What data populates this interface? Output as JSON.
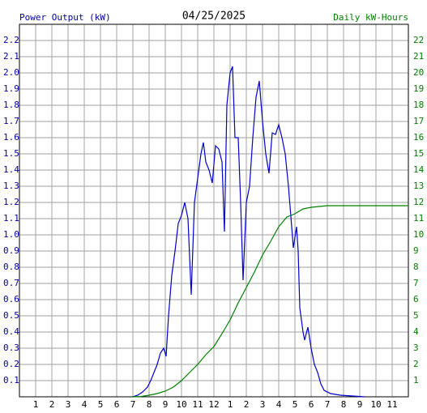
{
  "chart_data": {
    "type": "line",
    "title": "04/25/2025",
    "ylabel": "Power Output (kW)",
    "y2label": "Daily kW-Hours",
    "ylabel_color": "#0000aa",
    "y2label_color": "#008000",
    "xlim": [
      0,
      24
    ],
    "xticks": [
      {
        "value": 1,
        "label": "1"
      },
      {
        "value": 2,
        "label": "2"
      },
      {
        "value": 3,
        "label": "3"
      },
      {
        "value": 4,
        "label": "4"
      },
      {
        "value": 5,
        "label": "5"
      },
      {
        "value": 6,
        "label": "6"
      },
      {
        "value": 7,
        "label": "7"
      },
      {
        "value": 8,
        "label": "8"
      },
      {
        "value": 9,
        "label": "9"
      },
      {
        "value": 10,
        "label": "10"
      },
      {
        "value": 11,
        "label": "11"
      },
      {
        "value": 12,
        "label": "12"
      },
      {
        "value": 13,
        "label": "1"
      },
      {
        "value": 14,
        "label": "2"
      },
      {
        "value": 15,
        "label": "3"
      },
      {
        "value": 16,
        "label": "4"
      },
      {
        "value": 17,
        "label": "5"
      },
      {
        "value": 18,
        "label": "6"
      },
      {
        "value": 19,
        "label": "7"
      },
      {
        "value": 20,
        "label": "8"
      },
      {
        "value": 21,
        "label": "9"
      },
      {
        "value": 22,
        "label": "10"
      },
      {
        "value": 23,
        "label": "11"
      }
    ],
    "ylim": [
      0,
      2.3
    ],
    "yticks": [
      0.1,
      0.2,
      0.3,
      0.4,
      0.5,
      0.6,
      0.7,
      0.8,
      0.9,
      {
        "value": 1,
        "label": "1.0"
      },
      1.1,
      1.2,
      1.3,
      1.4,
      1.5,
      1.6,
      1.7,
      1.8,
      1.9,
      {
        "value": 2,
        "label": "2.0"
      },
      2.1,
      2.2
    ],
    "y2lim": [
      0,
      23
    ],
    "y2ticks": [
      1,
      2,
      3,
      4,
      5,
      6,
      7,
      8,
      9,
      10,
      11,
      12,
      13,
      14,
      15,
      16,
      17,
      18,
      19,
      20,
      21,
      22
    ],
    "grid": true,
    "series": [
      {
        "color": "#0000cc",
        "axis": "y",
        "x": [
          7.0,
          7.3,
          7.6,
          7.9,
          8.1,
          8.3,
          8.5,
          8.7,
          8.9,
          9.05,
          9.2,
          9.4,
          9.6,
          9.8,
          10.0,
          10.2,
          10.4,
          10.6,
          10.8,
          11.0,
          11.2,
          11.35,
          11.5,
          11.7,
          11.9,
          12.1,
          12.3,
          12.5,
          12.65,
          12.8,
          13.0,
          13.15,
          13.3,
          13.5,
          13.65,
          13.8,
          14.0,
          14.2,
          14.4,
          14.6,
          14.8,
          15.0,
          15.2,
          15.4,
          15.6,
          15.8,
          16.0,
          16.2,
          16.4,
          16.6,
          16.8,
          16.9,
          17.1,
          17.2,
          17.3,
          17.5,
          17.6,
          17.8,
          18.0,
          18.2,
          18.4,
          18.6,
          18.8,
          19.2,
          19.8,
          21.3
        ],
        "values": [
          0,
          0.01,
          0.03,
          0.06,
          0.1,
          0.15,
          0.2,
          0.27,
          0.3,
          0.25,
          0.5,
          0.75,
          0.9,
          1.07,
          1.12,
          1.2,
          1.1,
          0.63,
          1.2,
          1.35,
          1.5,
          1.57,
          1.45,
          1.4,
          1.32,
          1.55,
          1.53,
          1.45,
          1.02,
          1.8,
          2.0,
          2.04,
          1.6,
          1.6,
          1.2,
          0.72,
          1.2,
          1.3,
          1.6,
          1.85,
          1.95,
          1.7,
          1.5,
          1.38,
          1.63,
          1.62,
          1.68,
          1.6,
          1.5,
          1.3,
          1.05,
          0.92,
          1.05,
          0.9,
          0.55,
          0.4,
          0.35,
          0.43,
          0.3,
          0.2,
          0.15,
          0.08,
          0.04,
          0.02,
          0.01,
          0
        ]
      },
      {
        "color": "#008000",
        "axis": "y2",
        "x": [
          7.0,
          7.5,
          8.0,
          8.5,
          9.0,
          9.5,
          10.0,
          10.5,
          11.0,
          11.5,
          12.0,
          12.5,
          13.0,
          13.5,
          14.0,
          14.5,
          15.0,
          15.5,
          16.0,
          16.5,
          17.0,
          17.5,
          18.0,
          19.0,
          24.0
        ],
        "values": [
          0,
          0.02,
          0.1,
          0.2,
          0.35,
          0.6,
          1.0,
          1.5,
          2.0,
          2.6,
          3.1,
          3.9,
          4.75,
          5.8,
          6.75,
          7.7,
          8.75,
          9.6,
          10.5,
          11.1,
          11.3,
          11.6,
          11.7,
          11.8,
          11.8
        ]
      }
    ]
  }
}
